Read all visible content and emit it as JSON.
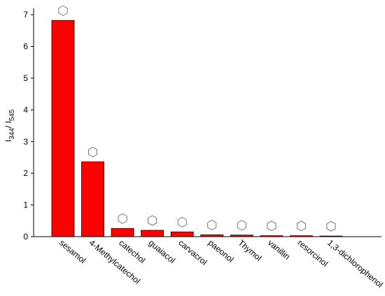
{
  "chart_data": {
    "type": "bar",
    "ylabel_parts": [
      "I",
      "344",
      "/ I",
      "545"
    ],
    "categories": [
      "sesamol",
      "4-Methylcatechol",
      "catechol",
      "guaiacol",
      "carvacrol",
      "paeonol",
      "Thymol",
      "vanillin",
      "resorcinol",
      "1,3-dichlorophenol"
    ],
    "values": [
      6.82,
      2.36,
      0.26,
      0.2,
      0.15,
      0.06,
      0.05,
      0.03,
      0.03,
      0.02
    ],
    "color": "#ff0000",
    "ylim": [
      0,
      7.2
    ],
    "yticks": [
      0,
      1,
      2,
      3,
      4,
      5,
      6,
      7
    ],
    "grid": false
  }
}
